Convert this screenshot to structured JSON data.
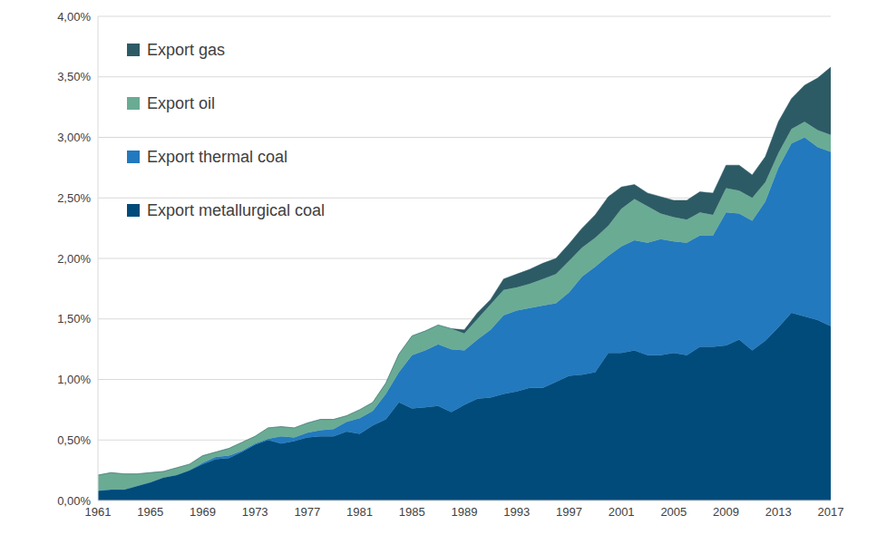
{
  "chart_data": {
    "type": "area",
    "stacked": true,
    "grid": true,
    "legend": "upper left",
    "x": [
      1961,
      1962,
      1963,
      1964,
      1965,
      1966,
      1967,
      1968,
      1969,
      1970,
      1971,
      1972,
      1973,
      1974,
      1975,
      1976,
      1977,
      1978,
      1979,
      1980,
      1981,
      1982,
      1983,
      1984,
      1985,
      1986,
      1987,
      1988,
      1989,
      1990,
      1991,
      1992,
      1993,
      1994,
      1995,
      1996,
      1997,
      1998,
      1999,
      2000,
      2001,
      2002,
      2003,
      2004,
      2005,
      2006,
      2007,
      2008,
      2009,
      2010,
      2011,
      2012,
      2013,
      2014,
      2015,
      2016,
      2017
    ],
    "xlim": [
      1961,
      2017
    ],
    "xticks": [
      1961,
      1965,
      1969,
      1973,
      1977,
      1981,
      1985,
      1989,
      1993,
      1997,
      2001,
      2005,
      2009,
      2013,
      2017
    ],
    "ylim": [
      0,
      4
    ],
    "yticks": [
      {
        "value": 0,
        "label": "0,00%"
      },
      {
        "value": 0.5,
        "label": "0,50%"
      },
      {
        "value": 1,
        "label": "1,00%"
      },
      {
        "value": 1.5,
        "label": "1,50%"
      },
      {
        "value": 2,
        "label": "2,00%"
      },
      {
        "value": 2.5,
        "label": "2,50%"
      },
      {
        "value": 3,
        "label": "3,00%"
      },
      {
        "value": 3.5,
        "label": "3,50%"
      },
      {
        "value": 4,
        "label": "4,00%"
      }
    ],
    "series": [
      {
        "name": "Export metallurgical coal",
        "color": "#004b7a",
        "values": [
          0.08,
          0.09,
          0.09,
          0.12,
          0.15,
          0.19,
          0.21,
          0.25,
          0.3,
          0.34,
          0.35,
          0.4,
          0.46,
          0.5,
          0.47,
          0.49,
          0.52,
          0.53,
          0.53,
          0.57,
          0.55,
          0.62,
          0.67,
          0.81,
          0.76,
          0.77,
          0.78,
          0.73,
          0.79,
          0.84,
          0.85,
          0.88,
          0.9,
          0.93,
          0.93,
          0.98,
          1.03,
          1.04,
          1.06,
          1.22,
          1.22,
          1.24,
          1.2,
          1.2,
          1.22,
          1.2,
          1.27,
          1.27,
          1.28,
          1.33,
          1.24,
          1.32,
          1.43,
          1.55,
          1.52,
          1.49,
          1.44
        ]
      },
      {
        "name": "Export thermal coal",
        "color": "#2279bd",
        "values": [
          0,
          0,
          0,
          0,
          0,
          0,
          0,
          0,
          0.01,
          0.02,
          0.02,
          0.01,
          0.01,
          0.01,
          0.06,
          0.03,
          0.04,
          0.05,
          0.06,
          0.08,
          0.13,
          0.12,
          0.21,
          0.25,
          0.44,
          0.47,
          0.51,
          0.52,
          0.45,
          0.49,
          0.56,
          0.65,
          0.67,
          0.66,
          0.68,
          0.65,
          0.69,
          0.81,
          0.87,
          0.8,
          0.88,
          0.91,
          0.93,
          0.96,
          0.92,
          0.93,
          0.92,
          0.92,
          1.1,
          1.04,
          1.07,
          1.15,
          1.32,
          1.4,
          1.48,
          1.43,
          1.44
        ]
      },
      {
        "name": "Export oil",
        "color": "#6aab94",
        "values": [
          0.13,
          0.14,
          0.13,
          0.1,
          0.08,
          0.05,
          0.06,
          0.05,
          0.06,
          0.04,
          0.06,
          0.07,
          0.06,
          0.09,
          0.08,
          0.08,
          0.08,
          0.09,
          0.08,
          0.05,
          0.07,
          0.07,
          0.09,
          0.15,
          0.16,
          0.16,
          0.16,
          0.17,
          0.14,
          0.17,
          0.21,
          0.21,
          0.19,
          0.2,
          0.22,
          0.24,
          0.26,
          0.24,
          0.24,
          0.25,
          0.31,
          0.34,
          0.3,
          0.21,
          0.2,
          0.19,
          0.19,
          0.17,
          0.2,
          0.19,
          0.19,
          0.16,
          0.12,
          0.12,
          0.13,
          0.14,
          0.14
        ]
      },
      {
        "name": "Export gas",
        "color": "#2d5b65",
        "values": [
          0,
          0,
          0,
          0,
          0,
          0,
          0,
          0,
          0,
          0,
          0,
          0,
          0,
          0,
          0,
          0,
          0,
          0,
          0,
          0,
          0,
          0,
          0,
          0,
          0,
          0,
          0,
          0,
          0.03,
          0.05,
          0.04,
          0.09,
          0.11,
          0.12,
          0.13,
          0.13,
          0.14,
          0.16,
          0.19,
          0.24,
          0.18,
          0.12,
          0.11,
          0.14,
          0.14,
          0.16,
          0.17,
          0.18,
          0.19,
          0.21,
          0.19,
          0.21,
          0.26,
          0.25,
          0.3,
          0.43,
          0.56
        ]
      }
    ]
  }
}
